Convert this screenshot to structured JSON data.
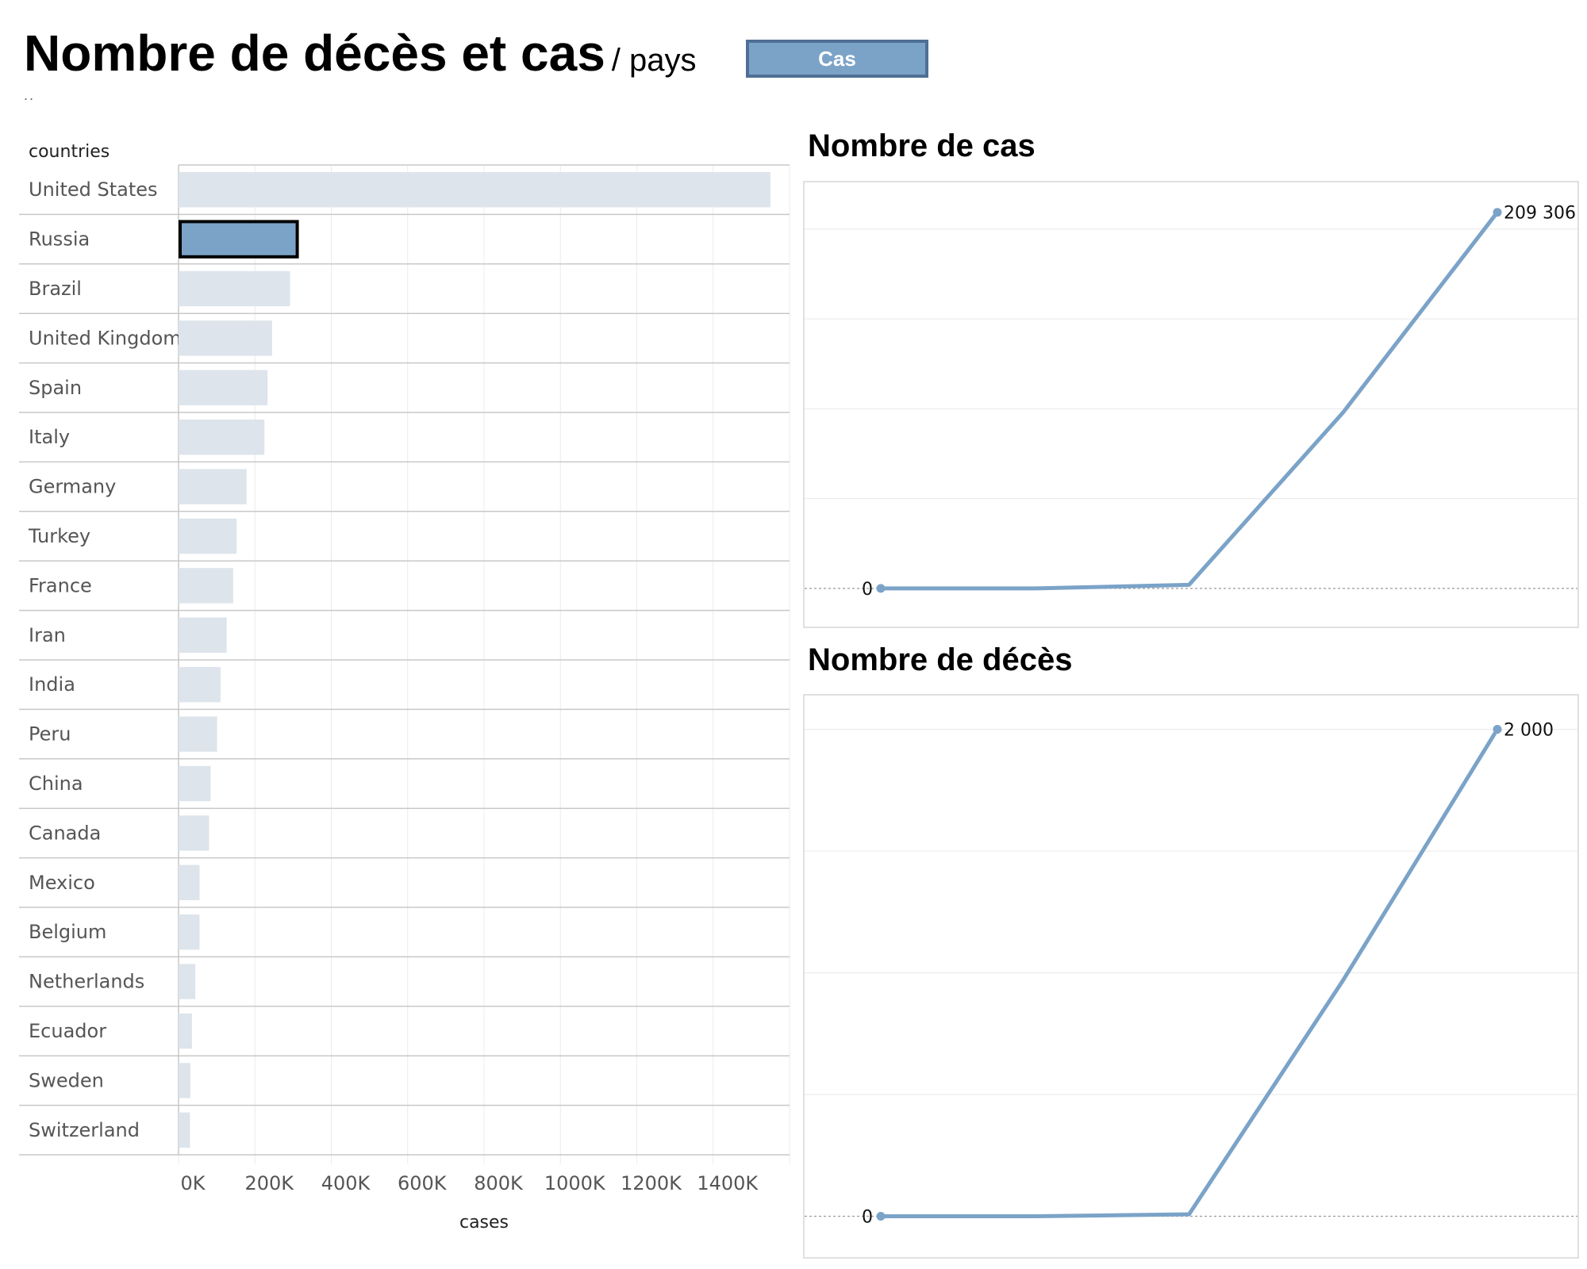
{
  "header": {
    "title": "Nombre de décès et cas",
    "subtitle": "/ pays",
    "toggle_label": "Cas",
    "dots": ".."
  },
  "colors": {
    "accent": "#7ba3c8",
    "accent_border": "#4f6f95",
    "bar_inactive": "#dde4eb",
    "line": "#7ba3c8",
    "grid": "#ececec",
    "row_separator": "#c8c8c8"
  },
  "chart_data": [
    {
      "type": "bar",
      "orientation": "horizontal",
      "category_header": "countries",
      "xlabel": "cases",
      "categories": [
        "United States",
        "Russia",
        "Brazil",
        "United Kingdom",
        "Spain",
        "Italy",
        "Germany",
        "Turkey",
        "France",
        "Iran",
        "India",
        "Peru",
        "China",
        "Canada",
        "Mexico",
        "Belgium",
        "Netherlands",
        "Ecuador",
        "Sweden",
        "Switzerland"
      ],
      "values": [
        1550000,
        315000,
        292000,
        245000,
        233000,
        225000,
        178000,
        152000,
        143000,
        126000,
        110000,
        101000,
        84000,
        80000,
        55000,
        55000,
        44000,
        35000,
        31000,
        30000
      ],
      "highlighted": "Russia",
      "xlim": [
        0,
        1600000
      ],
      "xticks": [
        0,
        200000,
        400000,
        600000,
        800000,
        1000000,
        1200000,
        1400000
      ],
      "xtick_labels": [
        "0K",
        "200K",
        "400K",
        "600K",
        "800K",
        "1000K",
        "1200K",
        "1400K"
      ],
      "grid": true
    },
    {
      "type": "line",
      "title": "Nombre de cas",
      "x": [
        0,
        1,
        2,
        3,
        4
      ],
      "y": [
        0,
        0,
        2000,
        98000,
        209306
      ],
      "ylim": [
        -8000,
        218000
      ],
      "gridlines": [
        0,
        50000,
        100000,
        150000,
        200000
      ],
      "labels": [
        {
          "index": 0,
          "text": "0"
        },
        {
          "index": 4,
          "text": "209 306"
        }
      ]
    },
    {
      "type": "line",
      "title": "Nombre de décès",
      "x": [
        0,
        1,
        2,
        3,
        4
      ],
      "y": [
        0,
        0,
        8,
        970,
        2000
      ],
      "ylim": [
        -70,
        2080
      ],
      "gridlines": [
        0,
        500,
        1000,
        1500,
        2000
      ],
      "labels": [
        {
          "index": 0,
          "text": "0"
        },
        {
          "index": 4,
          "text": "2 000"
        }
      ]
    }
  ]
}
